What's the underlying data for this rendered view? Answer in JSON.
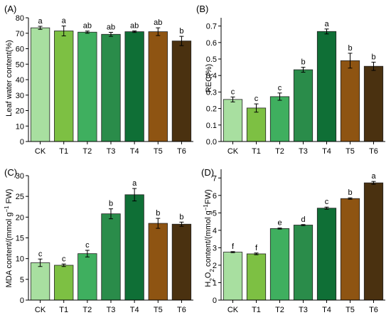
{
  "chart_data": [
    {
      "type": "bar",
      "panel_label": "(A)",
      "ylabel": "Leaf water content(%)",
      "xlabel": "",
      "categories": [
        "CK",
        "T1",
        "T2",
        "T3",
        "T4",
        "T5",
        "T6"
      ],
      "values": [
        73.5,
        71.5,
        70.7,
        69.3,
        71.0,
        71.0,
        65.0
      ],
      "errors": [
        1.0,
        3.2,
        0.7,
        1.3,
        0.5,
        2.5,
        3.0
      ],
      "letters": [
        "a",
        "a",
        "ab",
        "ab",
        "ab",
        "ab",
        "b"
      ],
      "ylim": [
        0,
        80
      ],
      "yticks": [
        "0",
        "10",
        "20",
        "30",
        "40",
        "50",
        "60",
        "70",
        "80"
      ]
    },
    {
      "type": "bar",
      "panel_label": "(B)",
      "ylabel": "REC(%)",
      "xlabel": "",
      "categories": [
        "CK",
        "T1",
        "T2",
        "T3",
        "T4",
        "T5",
        "T6"
      ],
      "values": [
        0.255,
        0.203,
        0.272,
        0.435,
        0.667,
        0.49,
        0.456
      ],
      "errors": [
        0.015,
        0.025,
        0.022,
        0.015,
        0.015,
        0.045,
        0.025
      ],
      "letters": [
        "c",
        "c",
        "c",
        "b",
        "a",
        "b",
        "b"
      ],
      "ylim": [
        0,
        0.75
      ],
      "yticks": [
        "0.0",
        "0.1",
        "0.2",
        "0.3",
        "0.4",
        "0.5",
        "0.6",
        "0.7"
      ]
    },
    {
      "type": "bar",
      "panel_label": "(C)",
      "ylabel_main": "MDA content/(mmol g",
      "ylabel_sup": "−1",
      "ylabel_end": " FW)",
      "xlabel": "",
      "categories": [
        "CK",
        "T1",
        "T2",
        "T3",
        "T4",
        "T5",
        "T6"
      ],
      "values": [
        9.0,
        8.4,
        11.2,
        20.8,
        25.4,
        18.5,
        18.3
      ],
      "errors": [
        0.9,
        0.3,
        0.8,
        1.2,
        1.5,
        1.2,
        0.5
      ],
      "letters": [
        "c",
        "c",
        "c",
        "b",
        "a",
        "b",
        "b"
      ],
      "ylim": [
        0,
        30
      ],
      "yticks": [
        "0",
        "5",
        "10",
        "15",
        "20",
        "25",
        "30"
      ]
    },
    {
      "type": "bar",
      "panel_label": "(D)",
      "ylabel_main": "H",
      "ylabel_sub1": "2",
      "ylabel_mid": "O",
      "ylabel_sub2": "2",
      "ylabel_tail": " content/(mmol g",
      "ylabel_sup": "−1",
      "ylabel_end": "FW)",
      "xlabel": "",
      "categories": [
        "CK",
        "T1",
        "T2",
        "T3",
        "T4",
        "T5",
        "T6"
      ],
      "values": [
        2.75,
        2.65,
        4.1,
        4.3,
        5.27,
        5.82,
        6.72
      ],
      "errors": [
        0.03,
        0.05,
        0.03,
        0.03,
        0.06,
        0.04,
        0.08
      ],
      "letters": [
        "f",
        "f",
        "e",
        "d",
        "c",
        "b",
        "a"
      ],
      "ylim": [
        0,
        7.5
      ],
      "yticks": [
        "0",
        "1",
        "2",
        "3",
        "4",
        "5",
        "6",
        "7"
      ]
    }
  ],
  "bar_colors": [
    "#a8dfa0",
    "#7dc043",
    "#3faf5f",
    "#2a8c4a",
    "#0f6f36",
    "#8e5412",
    "#4a3110"
  ]
}
